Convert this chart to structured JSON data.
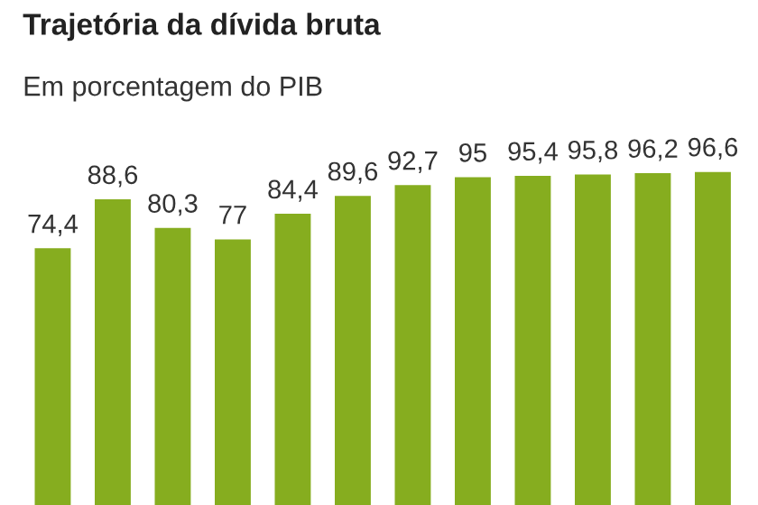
{
  "chart_data": {
    "type": "bar",
    "title": "Trajetória da dívida bruta",
    "subtitle": "Em porcentagem do PIB",
    "categories": [
      null,
      null,
      null,
      null,
      null,
      null,
      null,
      null,
      null,
      null,
      null,
      null
    ],
    "values": [
      74.4,
      88.6,
      80.3,
      77,
      84.4,
      89.6,
      92.7,
      95,
      95.4,
      95.8,
      96.2,
      96.6
    ],
    "value_labels": [
      "74,4",
      "88,6",
      "80,3",
      "77",
      "84,4",
      "89,6",
      "92,7",
      "95",
      "95,4",
      "95,8",
      "96,2",
      "96,6"
    ],
    "color": "#86ad1f"
  }
}
